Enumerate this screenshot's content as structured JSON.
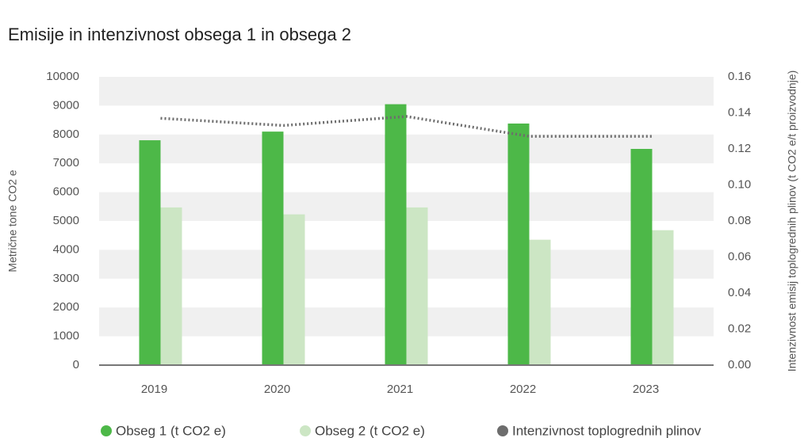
{
  "chart_data": {
    "type": "bar",
    "title": "Emisije in intenzivnost obsega 1 in obsega 2",
    "y_label": "Metrične tone CO2 e",
    "y2_label": "Intenzivnost emisij toplogrednih plinov (t CO2 e/t proizvodnje)",
    "categories": [
      "2019",
      "2020",
      "2021",
      "2022",
      "2023"
    ],
    "series": [
      {
        "name": "Obseg 1 (t CO2 e)",
        "color": "#4db848",
        "values": [
          7800,
          8100,
          9050,
          8380,
          7500
        ]
      },
      {
        "name": "Obseg 2 (t CO2 e)",
        "color": "#cce6c4",
        "values": [
          5470,
          5230,
          5470,
          4350,
          4680
        ]
      },
      {
        "name": "Intenzivnost toplogrednih plinov",
        "color": "#6d6d6d",
        "type": "line",
        "axis": "y2",
        "values": [
          0.137,
          0.133,
          0.138,
          0.127,
          0.127
        ]
      }
    ],
    "ylim": [
      0,
      10000
    ],
    "yticks": [
      0,
      1000,
      2000,
      3000,
      4000,
      5000,
      6000,
      7000,
      8000,
      9000,
      10000
    ],
    "y2lim": [
      0,
      0.16
    ],
    "y2ticks": [
      {
        "value": 0,
        "label": "0.00"
      },
      {
        "value": 0.02,
        "label": "0.02"
      },
      {
        "value": 0.04,
        "label": "0.04"
      },
      {
        "value": 0.06,
        "label": "0.06"
      },
      {
        "value": 0.08,
        "label": "0.08"
      },
      {
        "value": 0.1,
        "label": "0.10"
      },
      {
        "value": 0.12,
        "label": "0.12"
      },
      {
        "value": 0.14,
        "label": "0.14"
      },
      {
        "value": 0.16,
        "label": "0.16"
      }
    ],
    "grid": "bands"
  }
}
